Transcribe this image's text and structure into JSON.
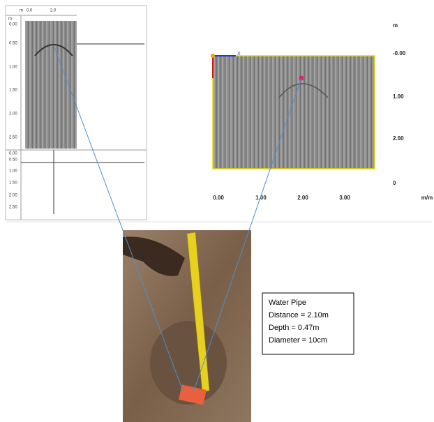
{
  "left_panel": {
    "unit": "m",
    "x_labels": [
      "0.0",
      "2.0"
    ],
    "depth_unit": "m",
    "depth_labels": [
      "0.00",
      "0.50",
      "1.00",
      "1.50",
      "2.00",
      "2.50"
    ],
    "lower_depth_labels": [
      "0.00",
      "0.50",
      "1.00",
      "1.50",
      "2.00",
      "2.50"
    ]
  },
  "right_panel": {
    "unit": "m",
    "axis_marker": "X",
    "depth_labels": [
      "-0.00",
      "1.00",
      "2.00",
      "0"
    ],
    "distance_labels": [
      "0.00",
      "1.00",
      "2.00",
      "3.00"
    ],
    "distance_unit": "m/m"
  },
  "annotation": {
    "title": "Water Pipe",
    "lines": [
      "Distance = 2.10m",
      "Depth = 0.47m",
      "Diameter = 10cm"
    ]
  }
}
